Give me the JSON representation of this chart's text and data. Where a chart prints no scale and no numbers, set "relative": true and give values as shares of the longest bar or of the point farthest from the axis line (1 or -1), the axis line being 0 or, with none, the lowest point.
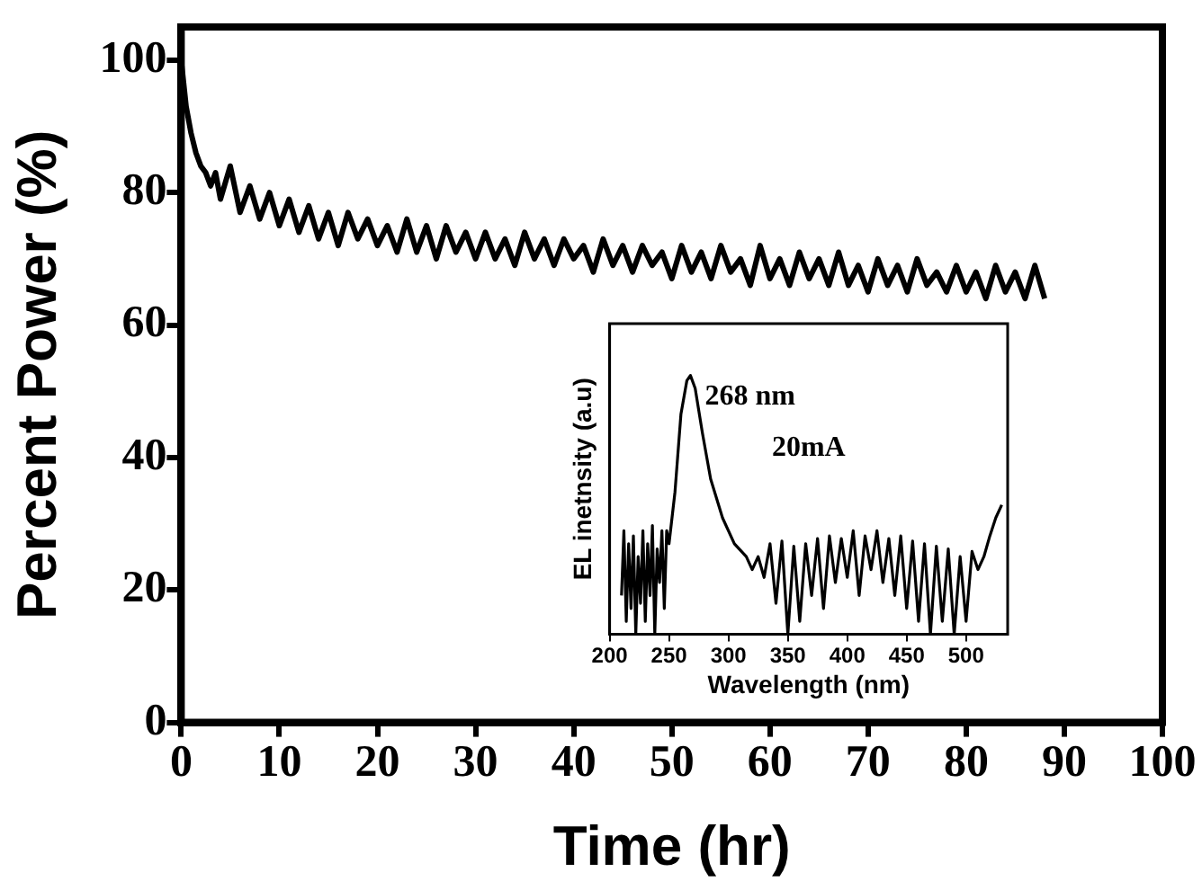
{
  "chart_data": [
    {
      "type": "line",
      "xlabel": "Time (hr)",
      "ylabel": "Percent Power (%)",
      "xlim": [
        0,
        100
      ],
      "xticks": [
        0,
        10,
        20,
        30,
        40,
        50,
        60,
        70,
        80,
        90,
        100
      ],
      "ylim": [
        0,
        105
      ],
      "yticks": [
        0,
        20,
        40,
        60,
        80,
        100
      ],
      "grid": false,
      "legend": false,
      "marker": "none",
      "line_style": "solid",
      "series": [
        {
          "color": "#000000",
          "x": [
            0,
            0.5,
            1,
            1.5,
            2,
            2.5,
            3,
            3.5,
            4,
            5,
            6,
            7,
            8,
            9,
            10,
            11,
            12,
            13,
            14,
            15,
            16,
            17,
            18,
            19,
            20,
            21,
            22,
            23,
            24,
            25,
            26,
            27,
            28,
            29,
            30,
            31,
            32,
            33,
            34,
            35,
            36,
            37,
            38,
            39,
            40,
            41,
            42,
            43,
            44,
            45,
            46,
            47,
            48,
            49,
            50,
            51,
            52,
            53,
            54,
            55,
            56,
            57,
            58,
            59,
            60,
            61,
            62,
            63,
            64,
            65,
            66,
            67,
            68,
            69,
            70,
            71,
            72,
            73,
            74,
            75,
            76,
            77,
            78,
            79,
            80,
            81,
            82,
            83,
            84,
            85,
            86,
            87,
            88
          ],
          "values": [
            100,
            93,
            89,
            86,
            84,
            83,
            81,
            83,
            79,
            84,
            77,
            81,
            76,
            80,
            75,
            79,
            74,
            78,
            73,
            77,
            72,
            77,
            73,
            76,
            72,
            75,
            71,
            76,
            71,
            75,
            70,
            75,
            71,
            74,
            70,
            74,
            70,
            73,
            69,
            74,
            70,
            73,
            69,
            73,
            70,
            72,
            68,
            73,
            69,
            72,
            68,
            72,
            69,
            71,
            67,
            72,
            68,
            71,
            67,
            72,
            68,
            70,
            66,
            72,
            67,
            70,
            66,
            71,
            67,
            70,
            66,
            71,
            66,
            69,
            65,
            70,
            66,
            69,
            65,
            70,
            66,
            68,
            65,
            69,
            65,
            68,
            64,
            69,
            65,
            68,
            64,
            69,
            64
          ]
        }
      ]
    },
    {
      "type": "line",
      "xlabel": "Wavelength (nm)",
      "ylabel": "EL inetnsity (a.u)",
      "relative": true,
      "xlim": [
        200,
        535
      ],
      "xticks": [
        200,
        250,
        300,
        350,
        400,
        450,
        500
      ],
      "grid": false,
      "legend": false,
      "marker": "none",
      "line_style": "solid",
      "annotations": [
        {
          "text": "268 nm",
          "x": 268,
          "y": 1
        },
        "20mA"
      ],
      "series": [
        {
          "color": "#000000",
          "x": [
            210,
            212,
            214,
            216,
            218,
            220,
            222,
            224,
            226,
            228,
            230,
            232,
            234,
            236,
            238,
            240,
            242,
            244,
            246,
            248,
            250,
            255,
            260,
            265,
            268,
            272,
            278,
            285,
            295,
            305,
            315,
            320,
            325,
            330,
            335,
            340,
            345,
            350,
            355,
            360,
            365,
            370,
            375,
            380,
            385,
            390,
            395,
            400,
            405,
            410,
            415,
            420,
            425,
            430,
            435,
            440,
            445,
            450,
            455,
            460,
            465,
            470,
            475,
            480,
            485,
            490,
            495,
            500,
            505,
            510,
            515,
            520,
            525,
            530
          ],
          "values": [
            0.15,
            0.4,
            0.05,
            0.35,
            0.1,
            0.38,
            0,
            0.3,
            0.12,
            0.4,
            0.05,
            0.35,
            0.15,
            0.42,
            0,
            0.33,
            0.2,
            0.4,
            0.1,
            0.4,
            0.35,
            0.55,
            0.85,
            0.98,
            1,
            0.95,
            0.78,
            0.6,
            0.45,
            0.35,
            0.3,
            0.25,
            0.3,
            0.22,
            0.35,
            0.12,
            0.36,
            0,
            0.34,
            0.05,
            0.35,
            0.15,
            0.37,
            0.1,
            0.38,
            0.2,
            0.37,
            0.22,
            0.4,
            0.15,
            0.38,
            0.25,
            0.4,
            0.2,
            0.37,
            0.15,
            0.38,
            0.1,
            0.36,
            0.05,
            0.35,
            0,
            0.34,
            0.05,
            0.33,
            0,
            0.3,
            0.05,
            0.32,
            0.25,
            0.3,
            0.38,
            0.45,
            0.5
          ]
        }
      ]
    }
  ]
}
